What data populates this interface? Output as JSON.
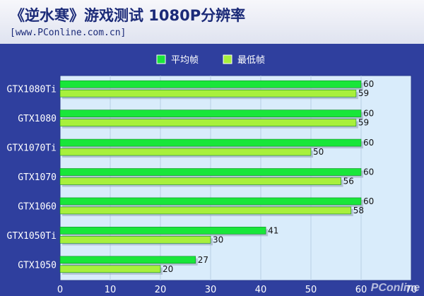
{
  "header": {
    "title": "《逆水寒》游戏测试 1080P分辨率",
    "subtitle": "[www.PConline.com.cn]"
  },
  "watermark": "PConline",
  "colors": {
    "background": "#2f3f9e",
    "plot_area": "#d9ecfb",
    "series_avg": "#19e63a",
    "series_min": "#a8f03c"
  },
  "chart_data": {
    "type": "bar",
    "orientation": "horizontal",
    "categories": [
      "GTX1080Ti",
      "GTX1080",
      "GTX1070Ti",
      "GTX1070",
      "GTX1060",
      "GTX1050Ti",
      "GTX1050"
    ],
    "series": [
      {
        "name": "平均帧",
        "values": [
          60,
          60,
          60,
          60,
          60,
          41,
          27
        ]
      },
      {
        "name": "最低帧",
        "values": [
          59,
          59,
          50,
          56,
          58,
          30,
          20
        ]
      }
    ],
    "xlim": [
      0,
      70
    ],
    "x_ticks": [
      "0",
      "10",
      "20",
      "30",
      "40",
      "50",
      "60",
      "70"
    ],
    "grid": true,
    "legend_position": "top-center"
  }
}
